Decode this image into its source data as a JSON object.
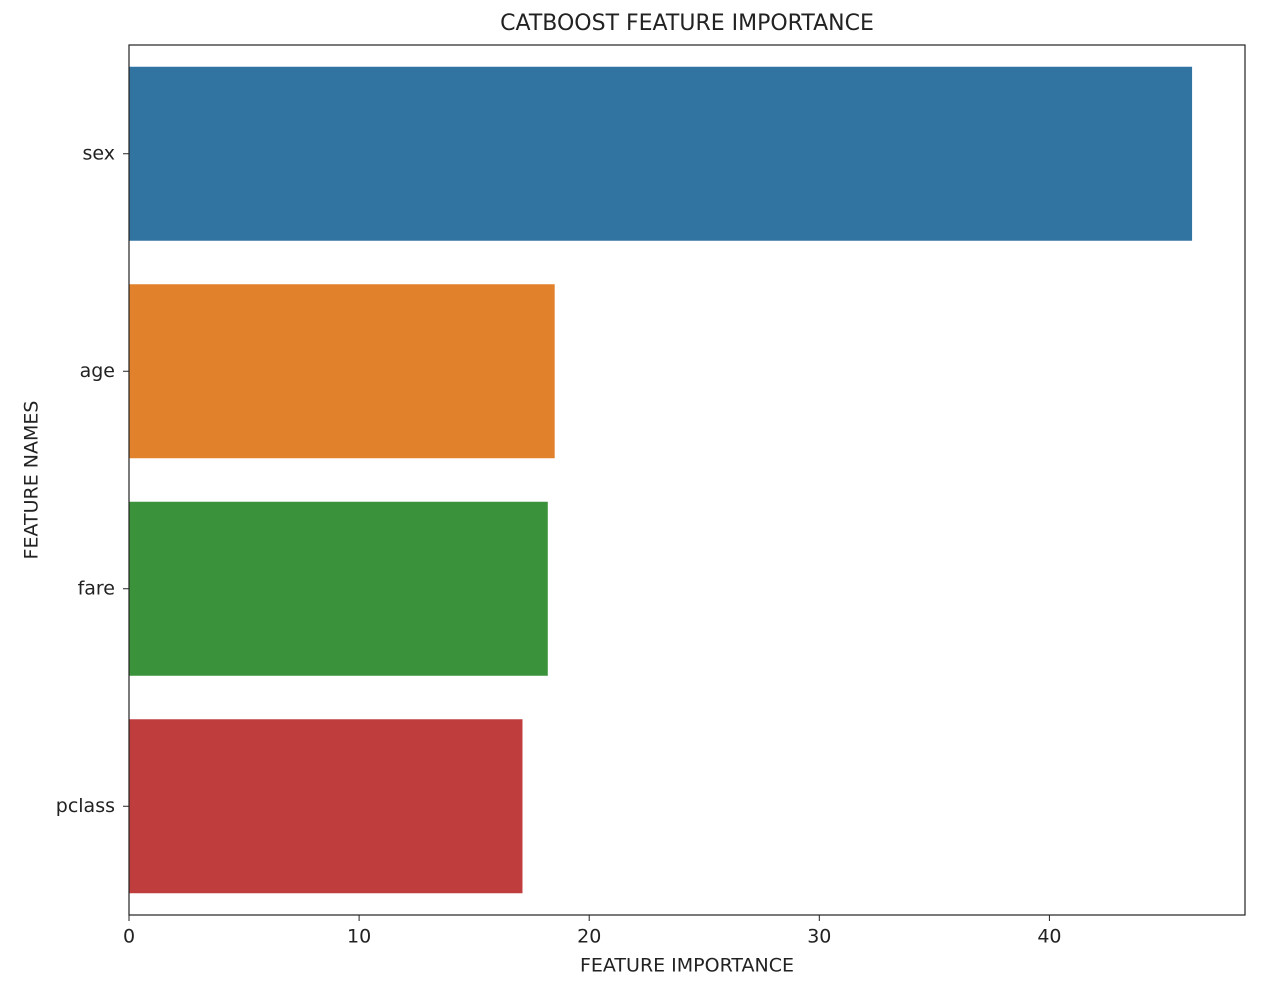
{
  "chart_data": {
    "type": "bar",
    "orientation": "horizontal",
    "title": "CATBOOST FEATURE IMPORTANCE",
    "x_label": "FEATURE IMPORTANCE",
    "y_label": "FEATURE NAMES",
    "categories": [
      "sex",
      "age",
      "fare",
      "pclass"
    ],
    "values": [
      46.2,
      18.5,
      18.2,
      17.1
    ],
    "colors": [
      "#3274a1",
      "#e1812c",
      "#3a923a",
      "#c03d3e"
    ],
    "xlim": [
      0,
      48.5
    ],
    "xticks": [
      0,
      10,
      20,
      30,
      40
    ],
    "grid": false
  }
}
